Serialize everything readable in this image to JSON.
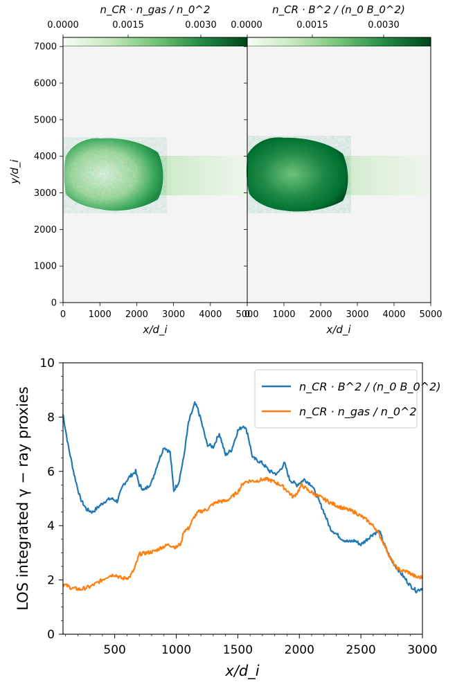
{
  "panels": [
    {
      "colorbar_label": "n_CR · n_gas / n_0^2",
      "colorbar_ticks": [
        "0.0000",
        "0.0015",
        "0.0030"
      ],
      "colorbar_range": [
        0,
        0.0042
      ],
      "colormap": [
        "#f7fcf5",
        "#c7e9c0",
        "#74c476",
        "#238b45",
        "#00441b"
      ]
    },
    {
      "colorbar_label": "n_CR · B^2 / (n_0 B_0^2)",
      "colorbar_ticks": [
        "0.0000",
        "0.0015",
        "0.0030"
      ],
      "colorbar_range": [
        0,
        0.0042
      ],
      "colormap": [
        "#f7fcf5",
        "#c7e9c0",
        "#74c476",
        "#238b45",
        "#00441b"
      ]
    }
  ],
  "map_axes": {
    "xlabel": "x/d_i",
    "ylabel": "y/d_i",
    "xticks": [
      "0",
      "1000",
      "2000",
      "3000",
      "4000",
      "5000"
    ],
    "yticks": [
      "0",
      "1000",
      "2000",
      "3000",
      "4000",
      "5000",
      "6000",
      "7000"
    ],
    "xlim": [
      0,
      5000
    ],
    "ylim": [
      0,
      7250
    ],
    "background": "#f4f4f4"
  },
  "chart_data": {
    "type": "line",
    "xlabel": "x/d_i",
    "ylabel": "LOS integrated γ − ray proxies",
    "xlim": [
      80,
      3000
    ],
    "ylim": [
      0,
      10
    ],
    "xticks": [
      "500",
      "1000",
      "1500",
      "2000",
      "2500",
      "3000"
    ],
    "yticks": [
      "0",
      "2",
      "4",
      "6",
      "8",
      "10"
    ],
    "legend_position": "top-right",
    "series": [
      {
        "name": "n_CR · B^2 / (n_0 B_0^2)",
        "color": "#1f77b4",
        "x": [
          80,
          120,
          170,
          220,
          270,
          320,
          370,
          420,
          470,
          520,
          570,
          620,
          670,
          700,
          740,
          800,
          850,
          900,
          950,
          980,
          1020,
          1060,
          1100,
          1150,
          1175,
          1200,
          1250,
          1300,
          1350,
          1400,
          1450,
          1500,
          1550,
          1580,
          1620,
          1700,
          1760,
          1820,
          1880,
          1920,
          1980,
          2040,
          2100,
          2150,
          2200,
          2250,
          2300,
          2350,
          2400,
          2450,
          2500,
          2550,
          2600,
          2650,
          2700,
          2750,
          2800,
          2850,
          2900,
          2950,
          3000
        ],
        "values": [
          8.1,
          7.0,
          5.9,
          5.0,
          4.6,
          4.5,
          4.7,
          4.9,
          5.0,
          4.9,
          5.5,
          5.8,
          6.0,
          5.5,
          5.3,
          5.6,
          6.3,
          6.9,
          6.7,
          5.3,
          5.6,
          6.5,
          7.8,
          8.5,
          8.3,
          7.9,
          7.0,
          6.9,
          7.4,
          6.6,
          6.8,
          7.5,
          7.7,
          7.4,
          6.5,
          6.3,
          6.0,
          5.9,
          6.3,
          5.7,
          5.5,
          5.7,
          5.5,
          5.0,
          4.5,
          3.9,
          3.7,
          3.5,
          3.4,
          3.45,
          3.3,
          3.5,
          3.7,
          3.8,
          3.2,
          2.7,
          2.4,
          2.1,
          1.8,
          1.6,
          1.7
        ]
      },
      {
        "name": "n_CR · n_gas / n_0^2",
        "color": "#ff7f0e",
        "x": [
          80,
          150,
          220,
          300,
          380,
          450,
          500,
          560,
          620,
          660,
          700,
          760,
          820,
          880,
          940,
          1000,
          1040,
          1060,
          1100,
          1150,
          1180,
          1250,
          1300,
          1350,
          1400,
          1450,
          1500,
          1550,
          1600,
          1650,
          1700,
          1750,
          1800,
          1850,
          1900,
          1950,
          1980,
          2020,
          2070,
          2150,
          2250,
          2350,
          2450,
          2550,
          2620,
          2680,
          2740,
          2780,
          2820,
          2880,
          2950,
          3000
        ],
        "values": [
          1.85,
          1.7,
          1.65,
          1.75,
          1.95,
          2.15,
          2.2,
          2.05,
          2.1,
          2.4,
          2.95,
          3.0,
          3.05,
          3.2,
          3.3,
          3.2,
          3.35,
          3.8,
          3.9,
          4.35,
          4.5,
          4.6,
          4.8,
          4.9,
          4.9,
          5.05,
          5.25,
          5.6,
          5.65,
          5.65,
          5.7,
          5.7,
          5.6,
          5.5,
          5.3,
          5.05,
          5.2,
          5.5,
          5.3,
          5.1,
          4.85,
          4.65,
          4.5,
          4.2,
          3.9,
          3.4,
          2.8,
          2.5,
          2.35,
          2.3,
          2.1,
          2.1
        ]
      }
    ]
  }
}
